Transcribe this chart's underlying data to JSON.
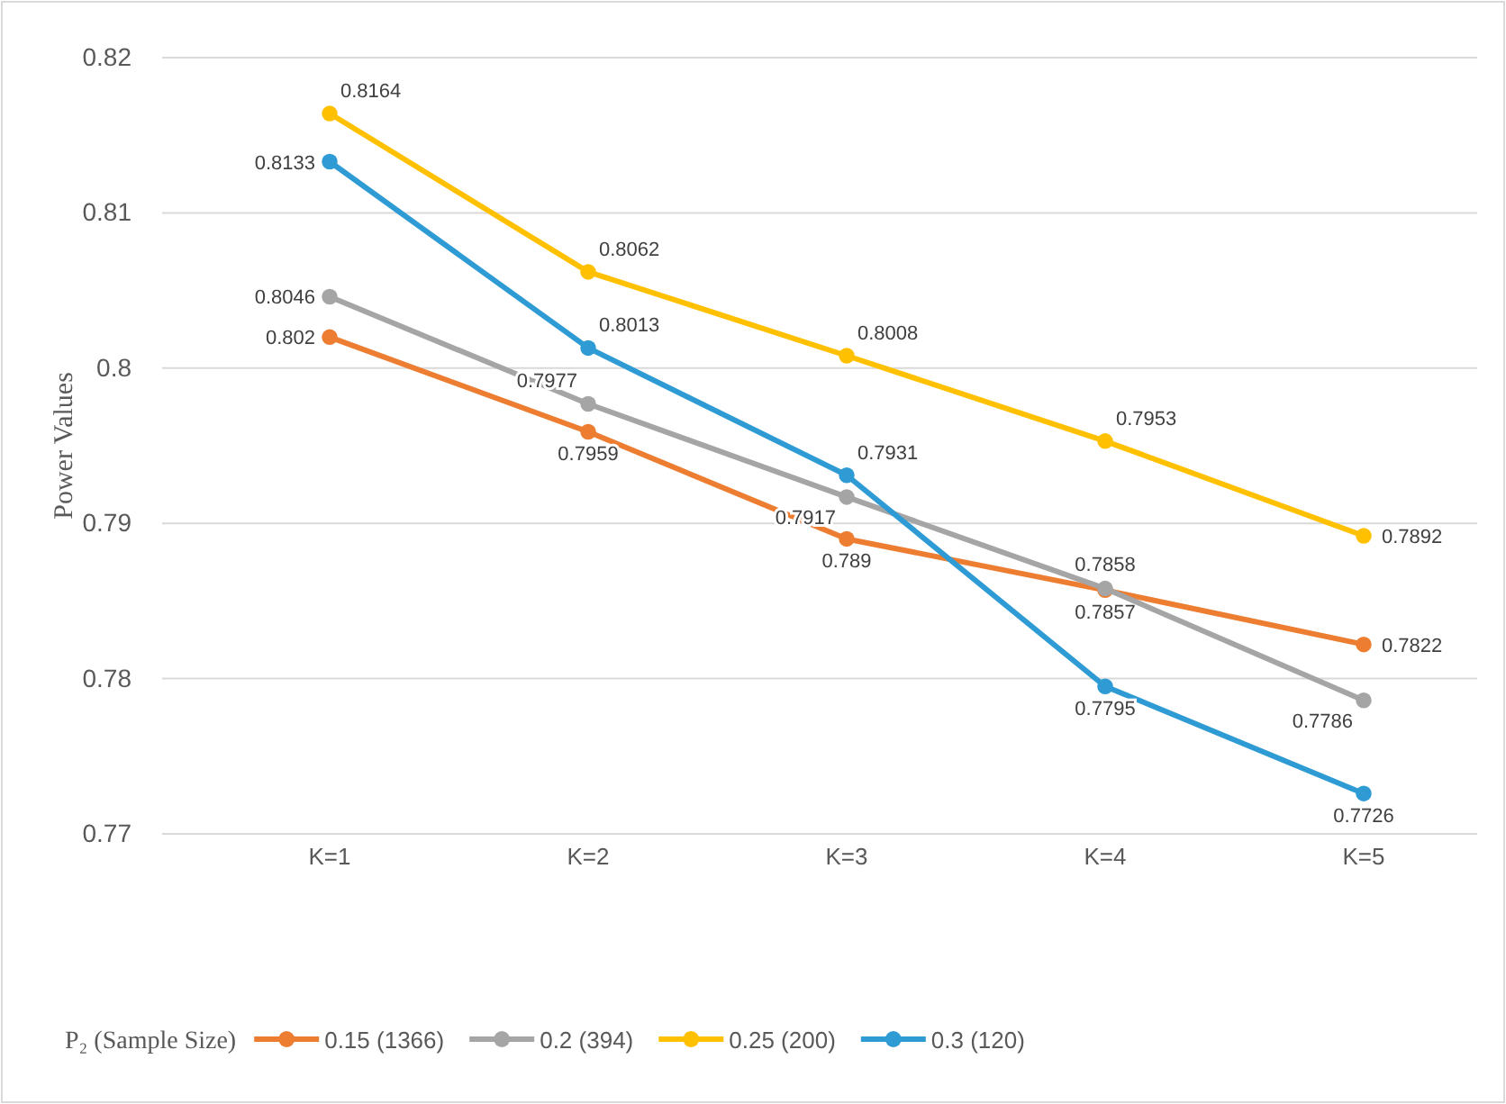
{
  "chart_data": {
    "type": "line",
    "ylabel": "Power Values",
    "legend_title": "P₂ (Sample Size)",
    "categories": [
      "K=1",
      "K=2",
      "K=3",
      "K=4",
      "K=5"
    ],
    "series": [
      {
        "name": "0.15 (1366)",
        "color": "#ed7d31",
        "values": [
          0.802,
          0.7959,
          0.789,
          0.7857,
          0.7822
        ]
      },
      {
        "name": "0.2 (394)",
        "color": "#a5a5a5",
        "values": [
          0.8046,
          0.7977,
          0.7917,
          0.7858,
          0.7786
        ]
      },
      {
        "name": "0.25 (200)",
        "color": "#ffc000",
        "values": [
          0.8164,
          0.8062,
          0.8008,
          0.7953,
          0.7892
        ]
      },
      {
        "name": "0.3 (120)",
        "color": "#2e9bd4",
        "values": [
          0.8133,
          0.8013,
          0.7931,
          0.7795,
          0.7726
        ]
      }
    ],
    "ylim": [
      0.77,
      0.82
    ],
    "yticks": [
      0.77,
      0.78,
      0.79,
      {
        "value": 0.8,
        "label": "0.8"
      },
      0.81,
      0.82
    ],
    "grid": "y",
    "legend": "bottom",
    "marker": "circle",
    "line_style": "solid",
    "data_labels": true
  }
}
